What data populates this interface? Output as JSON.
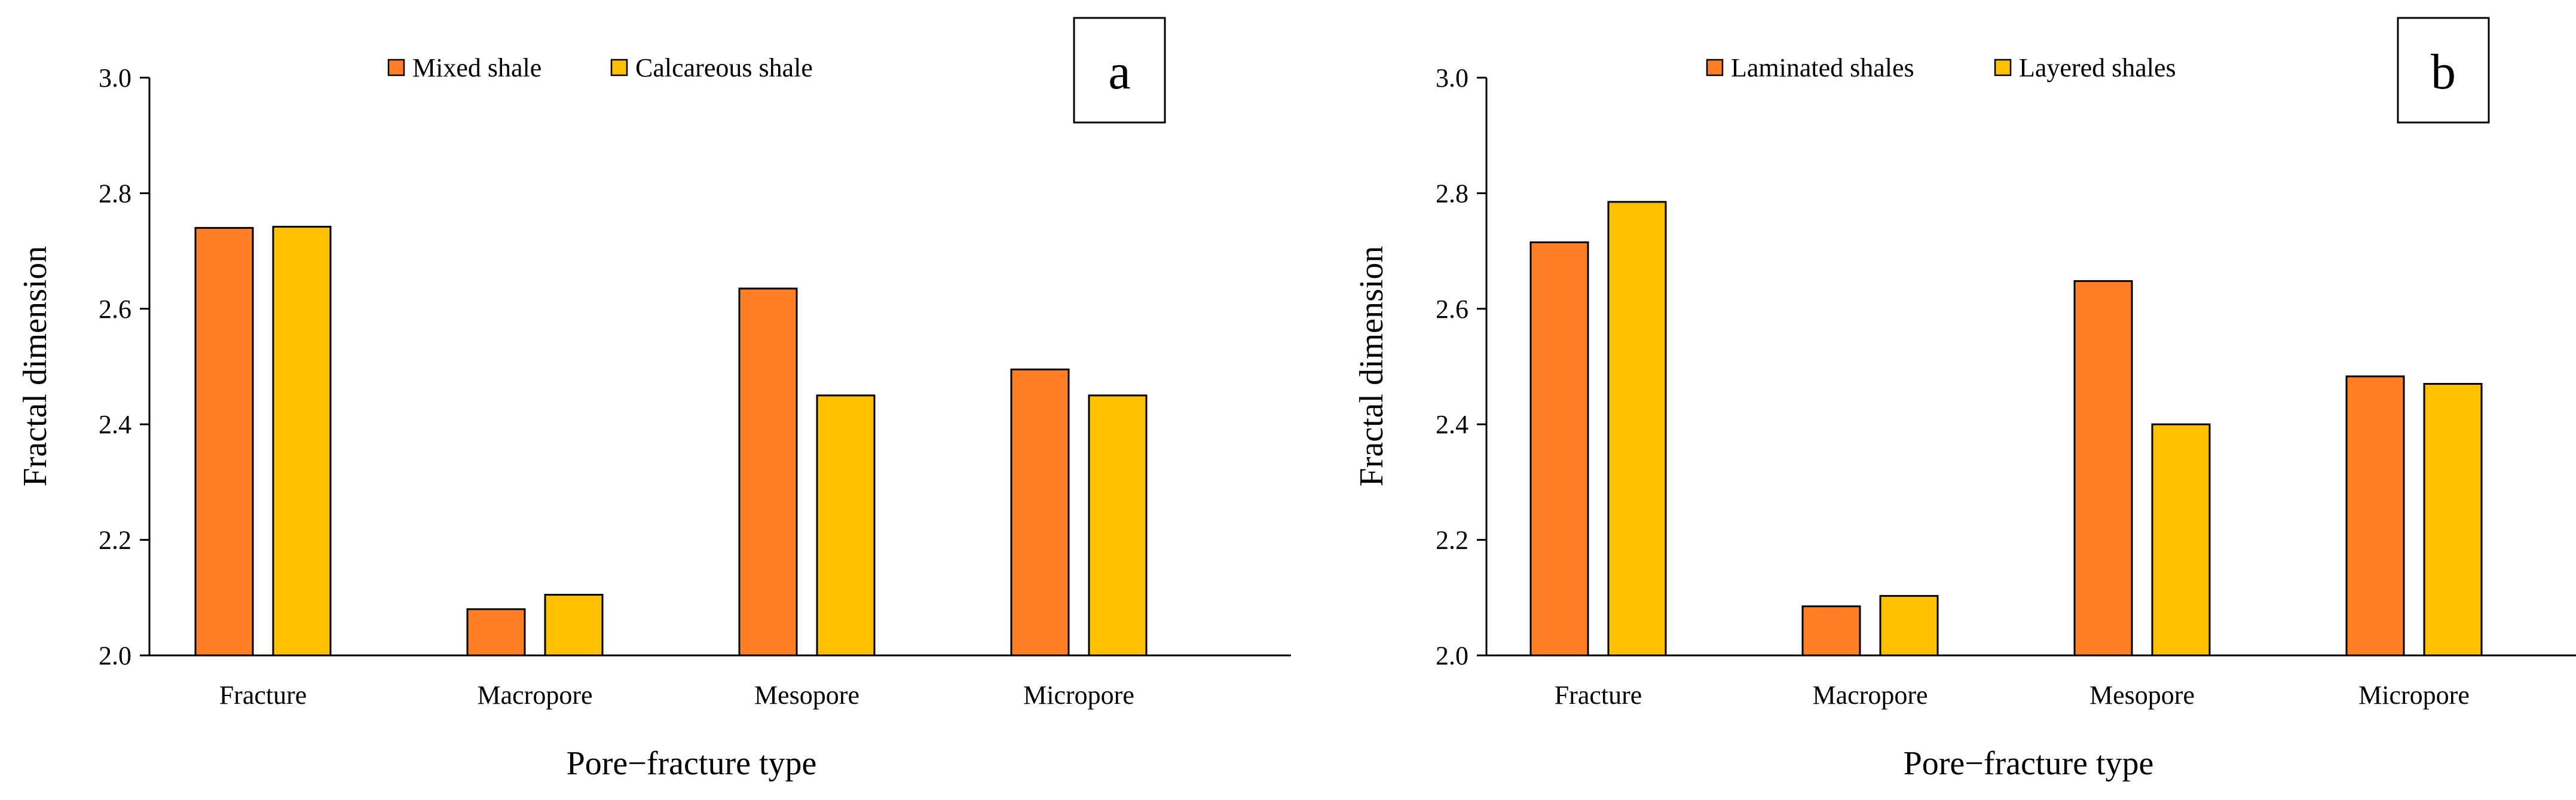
{
  "colors": {
    "series1": "#FF7F27",
    "series2": "#FFC000",
    "stroke": "#000000"
  },
  "chart_data": [
    {
      "panel_label": "a",
      "type": "bar",
      "categories": [
        "Fracture",
        "Macropore",
        "Mesopore",
        "Micropore"
      ],
      "series": [
        {
          "name": "Mixed shale",
          "values": [
            2.74,
            2.08,
            2.635,
            2.495
          ]
        },
        {
          "name": "Calcareous shale",
          "values": [
            2.742,
            2.105,
            2.45,
            2.45
          ]
        }
      ],
      "xlabel": "Pore−fracture type",
      "ylabel": "Fractal dimension",
      "ylim": [
        2.0,
        3.0
      ],
      "yticks": [
        "2.0",
        "2.2",
        "2.4",
        "2.6",
        "2.8",
        "3.0"
      ],
      "legend": "top-center",
      "grid": false
    },
    {
      "panel_label": "b",
      "type": "bar",
      "categories": [
        "Fracture",
        "Macropore",
        "Mesopore",
        "Micropore"
      ],
      "series": [
        {
          "name": "Laminated shales",
          "values": [
            2.715,
            2.085,
            2.648,
            2.483
          ]
        },
        {
          "name": "Layered shales",
          "values": [
            2.785,
            2.103,
            2.4,
            2.47
          ]
        }
      ],
      "xlabel": "Pore−fracture type",
      "ylabel": "Fractal dimension",
      "ylim": [
        2.0,
        3.0
      ],
      "yticks": [
        "2.0",
        "2.2",
        "2.4",
        "2.6",
        "2.8",
        "3.0"
      ],
      "legend": "top-center",
      "grid": false
    }
  ]
}
